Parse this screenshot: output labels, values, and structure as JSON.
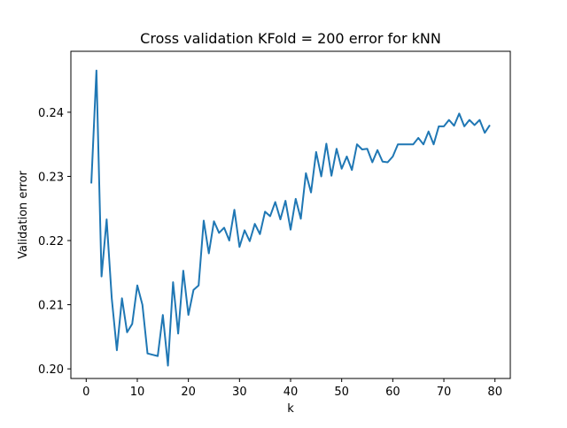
{
  "chart_data": {
    "type": "line",
    "title": "Cross validation KFold = 200 error for kNN",
    "xlabel": "k",
    "ylabel": "Validation error",
    "xlim": [
      -3,
      83
    ],
    "ylim": [
      0.1985,
      0.2495
    ],
    "xticks": [
      0,
      10,
      20,
      30,
      40,
      50,
      60,
      70,
      80
    ],
    "xtick_labels": [
      "0",
      "10",
      "20",
      "30",
      "40",
      "50",
      "60",
      "70",
      "80"
    ],
    "yticks": [
      0.2,
      0.21,
      0.22,
      0.23,
      0.24
    ],
    "ytick_labels": [
      "0.20",
      "0.21",
      "0.22",
      "0.23",
      "0.24"
    ],
    "grid": false,
    "legend": "none",
    "series": [
      {
        "color": "#1f77b4",
        "x": [
          1,
          2,
          3,
          4,
          5,
          6,
          7,
          8,
          9,
          10,
          11,
          12,
          13,
          14,
          15,
          16,
          17,
          18,
          19,
          20,
          21,
          22,
          23,
          24,
          25,
          26,
          27,
          28,
          29,
          30,
          31,
          32,
          33,
          34,
          35,
          36,
          37,
          38,
          39,
          40,
          41,
          42,
          43,
          44,
          45,
          46,
          47,
          48,
          49,
          50,
          51,
          52,
          53,
          54,
          55,
          56,
          57,
          58,
          59,
          60,
          61,
          62,
          63,
          64,
          65,
          66,
          67,
          68,
          69,
          70,
          71,
          72,
          73,
          74,
          75,
          76,
          77,
          78,
          79
        ],
        "values": [
          0.2289,
          0.2465,
          0.2144,
          0.2233,
          0.211,
          0.2029,
          0.211,
          0.2057,
          0.207,
          0.213,
          0.21,
          0.2024,
          0.2022,
          0.202,
          0.2084,
          0.2005,
          0.2135,
          0.2055,
          0.2153,
          0.2084,
          0.2123,
          0.213,
          0.2231,
          0.218,
          0.223,
          0.2212,
          0.222,
          0.22,
          0.2248,
          0.219,
          0.2216,
          0.2199,
          0.2226,
          0.221,
          0.2245,
          0.2238,
          0.226,
          0.2233,
          0.2262,
          0.2217,
          0.2265,
          0.2234,
          0.2305,
          0.2275,
          0.2338,
          0.23,
          0.2351,
          0.2301,
          0.2343,
          0.2312,
          0.2331,
          0.231,
          0.235,
          0.2342,
          0.2343,
          0.2322,
          0.2341,
          0.2323,
          0.2322,
          0.2331,
          0.235,
          0.235,
          0.235,
          0.235,
          0.236,
          0.235,
          0.237,
          0.235,
          0.2378,
          0.2378,
          0.2388,
          0.2379,
          0.2398,
          0.2378,
          0.2388,
          0.238,
          0.2388,
          0.2368,
          0.238
        ]
      }
    ]
  }
}
